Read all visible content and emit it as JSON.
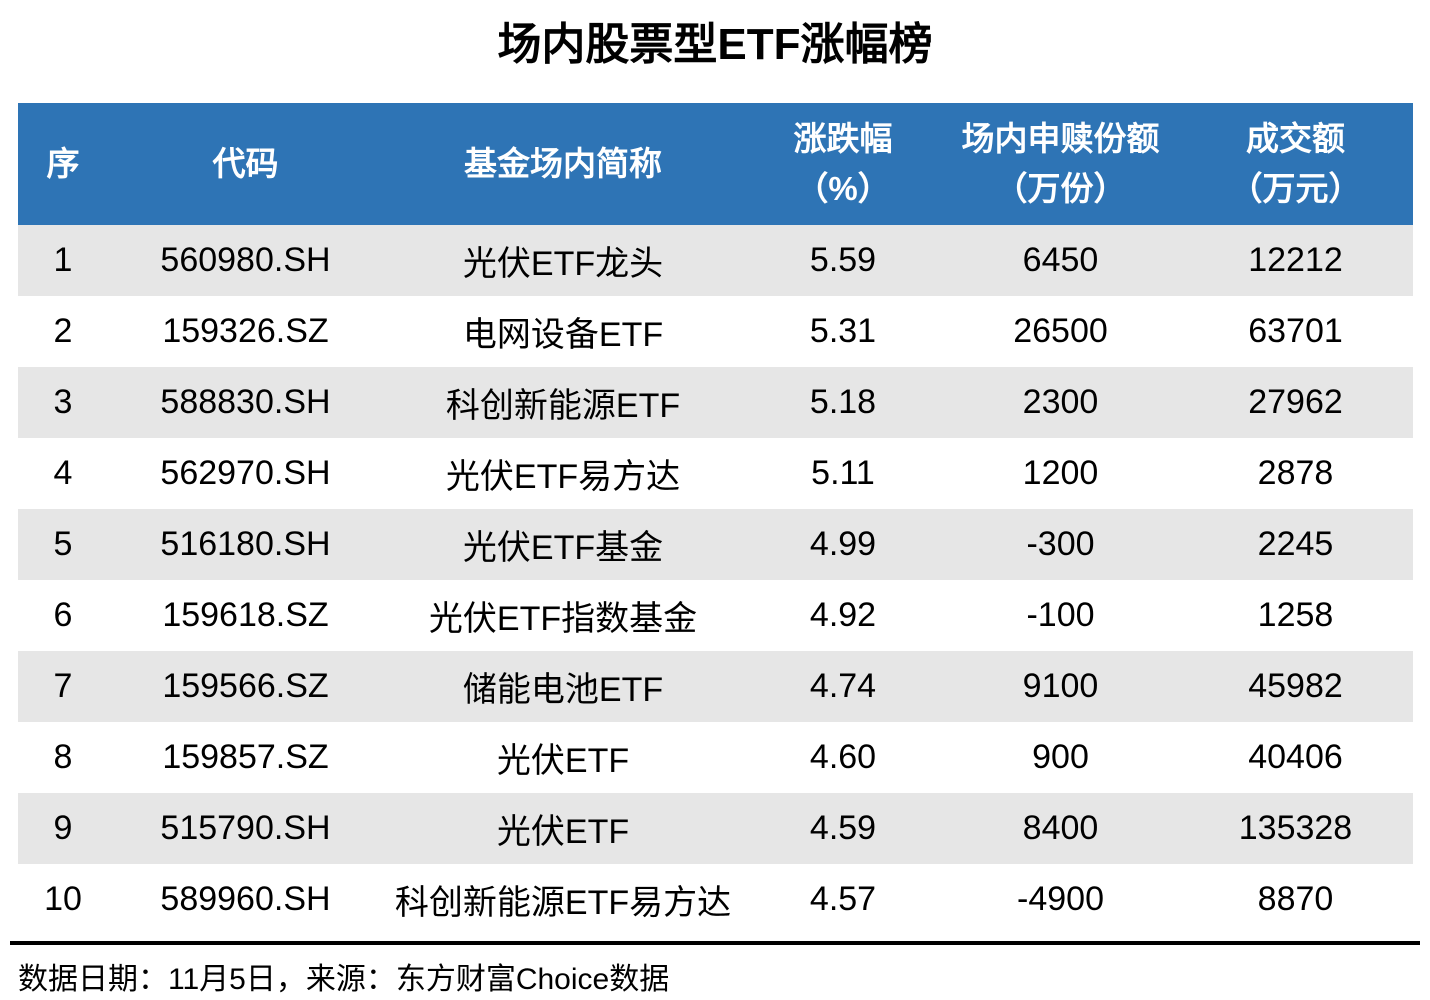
{
  "title": "场内股票型ETF涨幅榜",
  "table": {
    "columns": [
      {
        "line1": "序",
        "line2": ""
      },
      {
        "line1": "代码",
        "line2": ""
      },
      {
        "line1": "基金场内简称",
        "line2": ""
      },
      {
        "line1": "涨跌幅",
        "line2": "（%）"
      },
      {
        "line1": "场内申赎份额",
        "line2": "（万份）"
      },
      {
        "line1": "成交额",
        "line2": "（万元）"
      }
    ],
    "rows": [
      {
        "rank": "1",
        "code": "560980.SH",
        "name": "光伏ETF龙头",
        "change_pct": "5.59",
        "shares_wan": "6450",
        "turnover_wan": "12212"
      },
      {
        "rank": "2",
        "code": "159326.SZ",
        "name": "电网设备ETF",
        "change_pct": "5.31",
        "shares_wan": "26500",
        "turnover_wan": "63701"
      },
      {
        "rank": "3",
        "code": "588830.SH",
        "name": "科创新能源ETF",
        "change_pct": "5.18",
        "shares_wan": "2300",
        "turnover_wan": "27962"
      },
      {
        "rank": "4",
        "code": "562970.SH",
        "name": "光伏ETF易方达",
        "change_pct": "5.11",
        "shares_wan": "1200",
        "turnover_wan": "2878"
      },
      {
        "rank": "5",
        "code": "516180.SH",
        "name": "光伏ETF基金",
        "change_pct": "4.99",
        "shares_wan": "-300",
        "turnover_wan": "2245"
      },
      {
        "rank": "6",
        "code": "159618.SZ",
        "name": "光伏ETF指数基金",
        "change_pct": "4.92",
        "shares_wan": "-100",
        "turnover_wan": "1258"
      },
      {
        "rank": "7",
        "code": "159566.SZ",
        "name": "储能电池ETF",
        "change_pct": "4.74",
        "shares_wan": "9100",
        "turnover_wan": "45982"
      },
      {
        "rank": "8",
        "code": "159857.SZ",
        "name": "光伏ETF",
        "change_pct": "4.60",
        "shares_wan": "900",
        "turnover_wan": "40406"
      },
      {
        "rank": "9",
        "code": "515790.SH",
        "name": "光伏ETF",
        "change_pct": "4.59",
        "shares_wan": "8400",
        "turnover_wan": "135328"
      },
      {
        "rank": "10",
        "code": "589960.SH",
        "name": "科创新能源ETF易方达",
        "change_pct": "4.57",
        "shares_wan": "-4900",
        "turnover_wan": "8870"
      }
    ]
  },
  "footnote": "数据日期：11月5日，来源：东方财富Choice数据",
  "colors": {
    "header_bg": "#2E74B5",
    "header_text": "#FFFFFF",
    "row_alt_bg": "#E6E6E6",
    "row_bg": "#FFFFFF",
    "text": "#000000",
    "divider": "#000000"
  },
  "chart_data": {
    "type": "table",
    "title": "场内股票型ETF涨幅榜",
    "columns": [
      "序",
      "代码",
      "基金场内简称",
      "涨跌幅（%）",
      "场内申赎份额（万份）",
      "成交额（万元）"
    ],
    "rows": [
      [
        1,
        "560980.SH",
        "光伏ETF龙头",
        5.59,
        6450,
        12212
      ],
      [
        2,
        "159326.SZ",
        "电网设备ETF",
        5.31,
        26500,
        63701
      ],
      [
        3,
        "588830.SH",
        "科创新能源ETF",
        5.18,
        2300,
        27962
      ],
      [
        4,
        "562970.SH",
        "光伏ETF易方达",
        5.11,
        1200,
        2878
      ],
      [
        5,
        "516180.SH",
        "光伏ETF基金",
        4.99,
        -300,
        2245
      ],
      [
        6,
        "159618.SZ",
        "光伏ETF指数基金",
        4.92,
        -100,
        1258
      ],
      [
        7,
        "159566.SZ",
        "储能电池ETF",
        4.74,
        9100,
        45982
      ],
      [
        8,
        "159857.SZ",
        "光伏ETF",
        4.6,
        900,
        40406
      ],
      [
        9,
        "515790.SH",
        "光伏ETF",
        4.59,
        8400,
        135328
      ],
      [
        10,
        "589960.SH",
        "科创新能源ETF易方达",
        4.57,
        -4900,
        8870
      ]
    ],
    "note": "数据日期：11月5日，来源：东方财富Choice数据"
  }
}
